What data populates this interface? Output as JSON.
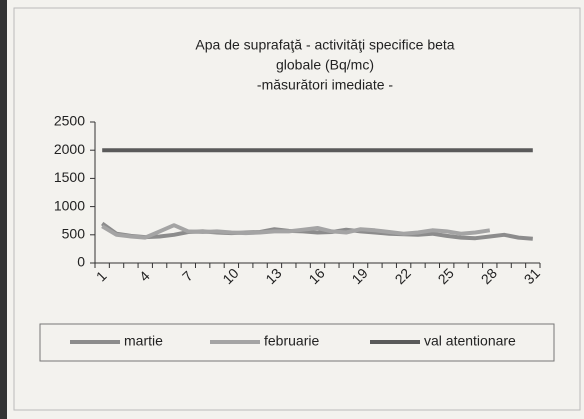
{
  "chart_data": {
    "type": "line",
    "title": [
      "Apa de suprafaţă - activităţi specifice beta",
      "globale (Bq/mc)"
    ],
    "subtitle": "-măsurători imediate -",
    "categories": [
      "1",
      null,
      null,
      "4",
      null,
      null,
      "7",
      null,
      null,
      "10",
      null,
      null,
      "13",
      null,
      null,
      "16",
      null,
      null,
      "19",
      null,
      null,
      "22",
      null,
      null,
      "25",
      null,
      null,
      "28",
      null,
      null,
      "31"
    ],
    "series": [
      {
        "name": "martie",
        "color": "#8c8c8c",
        "values": [
          700,
          520,
          480,
          460,
          470,
          500,
          550,
          560,
          540,
          530,
          540,
          550,
          600,
          570,
          560,
          540,
          550,
          590,
          560,
          540,
          520,
          510,
          500,
          520,
          480,
          450,
          440,
          470,
          500,
          450,
          430
        ]
      },
      {
        "name": "februarie",
        "color": "#a4a4a4",
        "values": [
          650,
          500,
          470,
          450,
          560,
          670,
          560,
          550,
          560,
          540,
          530,
          540,
          560,
          560,
          590,
          620,
          560,
          540,
          600,
          580,
          550,
          520,
          540,
          580,
          560,
          520,
          540,
          580,
          null,
          null,
          null
        ]
      },
      {
        "name": "val atentionare",
        "color": "#5a5a5a",
        "values": [
          2000,
          2000,
          2000,
          2000,
          2000,
          2000,
          2000,
          2000,
          2000,
          2000,
          2000,
          2000,
          2000,
          2000,
          2000,
          2000,
          2000,
          2000,
          2000,
          2000,
          2000,
          2000,
          2000,
          2000,
          2000,
          2000,
          2000,
          2000,
          2000,
          2000,
          2000
        ]
      }
    ],
    "ylim": [
      0,
      2500
    ],
    "yticks": [
      0,
      500,
      1000,
      1500,
      2000,
      2500
    ],
    "grid": false,
    "legend": "bottom"
  }
}
